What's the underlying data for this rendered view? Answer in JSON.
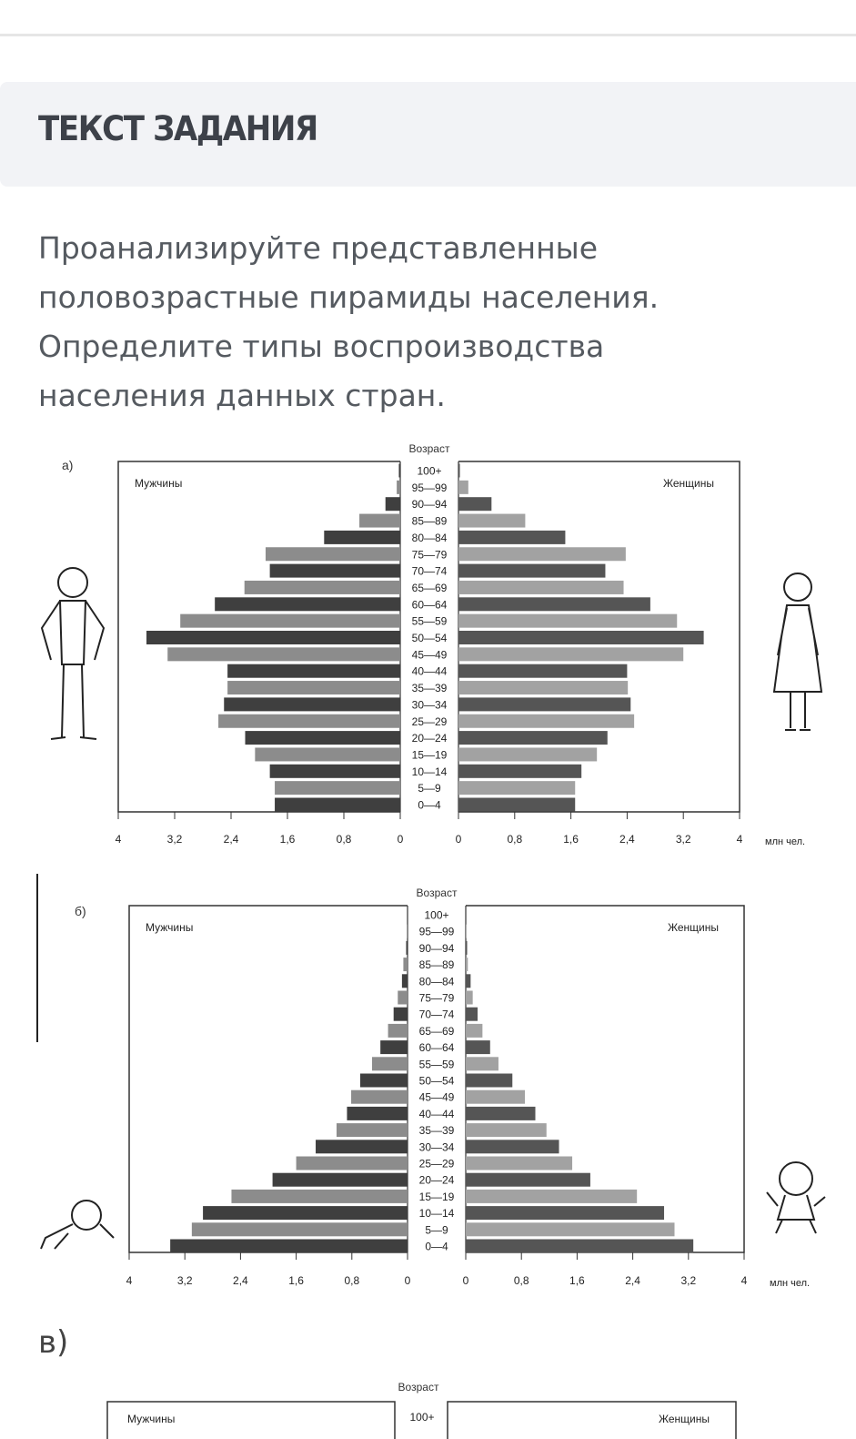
{
  "header": {
    "title": "ТЕКСТ ЗАДАНИЯ"
  },
  "task": {
    "lines": [
      "Проанализируйте представленные",
      "половозрастные пирамиды населения.",
      "Определите типы воспроизводства",
      "населения данных стран."
    ]
  },
  "third_chart": {
    "label": "в)",
    "age_title": "Возраст",
    "male_label": "Мужчины",
    "female_label": "Женщины",
    "first_age": "100+"
  },
  "chart_data": [
    {
      "type": "bar",
      "label": "а)",
      "title": "Возраст",
      "male_label": "Мужчины",
      "female_label": "Женщины",
      "unit": "млн чел.",
      "xlim": [
        0,
        4
      ],
      "ticks": [
        "0",
        "0,8",
        "1,6",
        "2,4",
        "3,2",
        "4"
      ],
      "categories": [
        "100+",
        "95—99",
        "90—94",
        "85—89",
        "80—84",
        "75—79",
        "70—74",
        "65—69",
        "60—64",
        "55—59",
        "50—54",
        "45—49",
        "40—44",
        "35—39",
        "30—34",
        "25—29",
        "20—24",
        "15—19",
        "10—14",
        "5—9",
        "0—4"
      ],
      "series": [
        {
          "name": "Мужчины",
          "values": [
            0.02,
            0.05,
            0.21,
            0.58,
            1.08,
            1.91,
            1.85,
            2.21,
            2.63,
            3.12,
            3.6,
            3.3,
            2.45,
            2.45,
            2.5,
            2.58,
            2.2,
            2.06,
            1.85,
            1.78,
            1.78
          ]
        },
        {
          "name": "Женщины",
          "values": [
            0.02,
            0.14,
            0.47,
            0.95,
            1.52,
            2.38,
            2.09,
            2.35,
            2.73,
            3.11,
            3.49,
            3.2,
            2.4,
            2.41,
            2.45,
            2.5,
            2.12,
            1.97,
            1.75,
            1.66,
            1.66
          ]
        }
      ]
    },
    {
      "type": "bar",
      "label": "б)",
      "title": "Возраст",
      "male_label": "Мужчины",
      "female_label": "Женщины",
      "unit": "млн чел.",
      "xlim": [
        0,
        4
      ],
      "ticks": [
        "0",
        "0,8",
        "1,6",
        "2,4",
        "3,2",
        "4"
      ],
      "categories": [
        "100+",
        "95—99",
        "90—94",
        "85—89",
        "80—84",
        "75—79",
        "70—74",
        "65—69",
        "60—64",
        "55—59",
        "50—54",
        "45—49",
        "40—44",
        "35—39",
        "30—34",
        "25—29",
        "20—24",
        "15—19",
        "10—14",
        "5—9",
        "0—4"
      ],
      "series": [
        {
          "name": "Мужчины",
          "values": [
            0,
            0.01,
            0.02,
            0.06,
            0.08,
            0.14,
            0.2,
            0.28,
            0.39,
            0.51,
            0.68,
            0.81,
            0.87,
            1.02,
            1.32,
            1.6,
            1.94,
            2.53,
            2.94,
            3.1,
            3.41
          ]
        },
        {
          "name": "Женщины",
          "values": [
            0,
            0.01,
            0.02,
            0.03,
            0.07,
            0.1,
            0.17,
            0.24,
            0.35,
            0.47,
            0.67,
            0.85,
            1.0,
            1.16,
            1.34,
            1.53,
            1.79,
            2.46,
            2.85,
            3.0,
            3.27
          ]
        }
      ]
    }
  ]
}
